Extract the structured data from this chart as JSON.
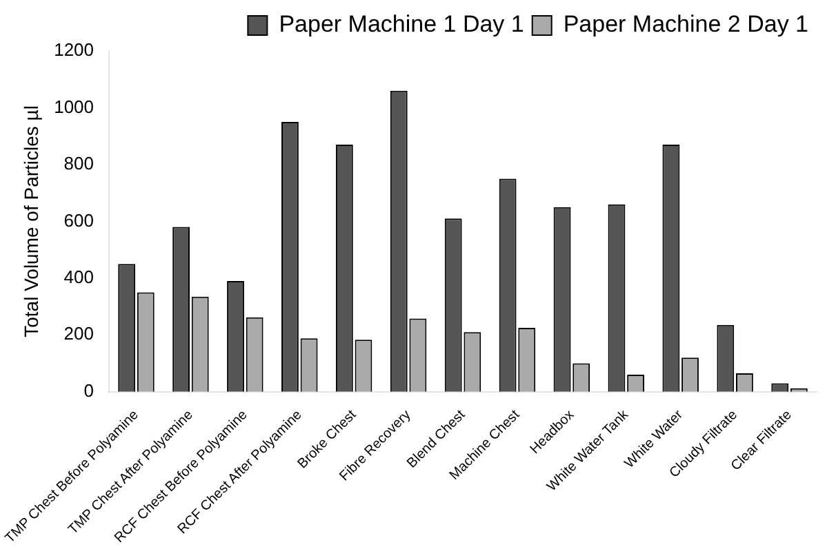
{
  "chart_data": {
    "type": "bar",
    "ylabel": "Total Volume of Particles µl",
    "categories": [
      "TMP Chest Before Polyamine",
      "TMP Chest After Polyamine",
      "RCF Chest Before Polyamine",
      "RCF Chest After Polyamine",
      "Broke Chest",
      "Fibre Recovery",
      "Blend Chest",
      "Machine Chest",
      "Headbox",
      "White Water Tank",
      "White Water",
      "Cloudy Filtrate",
      "Clear Filtrate"
    ],
    "series": [
      {
        "name": "Paper Machine 1 Day 1",
        "color": "#555555",
        "values": [
          450,
          580,
          390,
          950,
          870,
          1060,
          610,
          750,
          650,
          660,
          870,
          235,
          30
        ]
      },
      {
        "name": "Paper Machine 2 Day 1",
        "color": "#aaaaaa",
        "values": [
          350,
          335,
          262,
          188,
          183,
          258,
          210,
          225,
          100,
          60,
          120,
          65,
          12
        ]
      }
    ],
    "ylim": [
      0,
      1200
    ],
    "yticks": [
      0,
      200,
      400,
      600,
      800,
      1000,
      1200
    ],
    "grid": false,
    "legend": "top right"
  }
}
